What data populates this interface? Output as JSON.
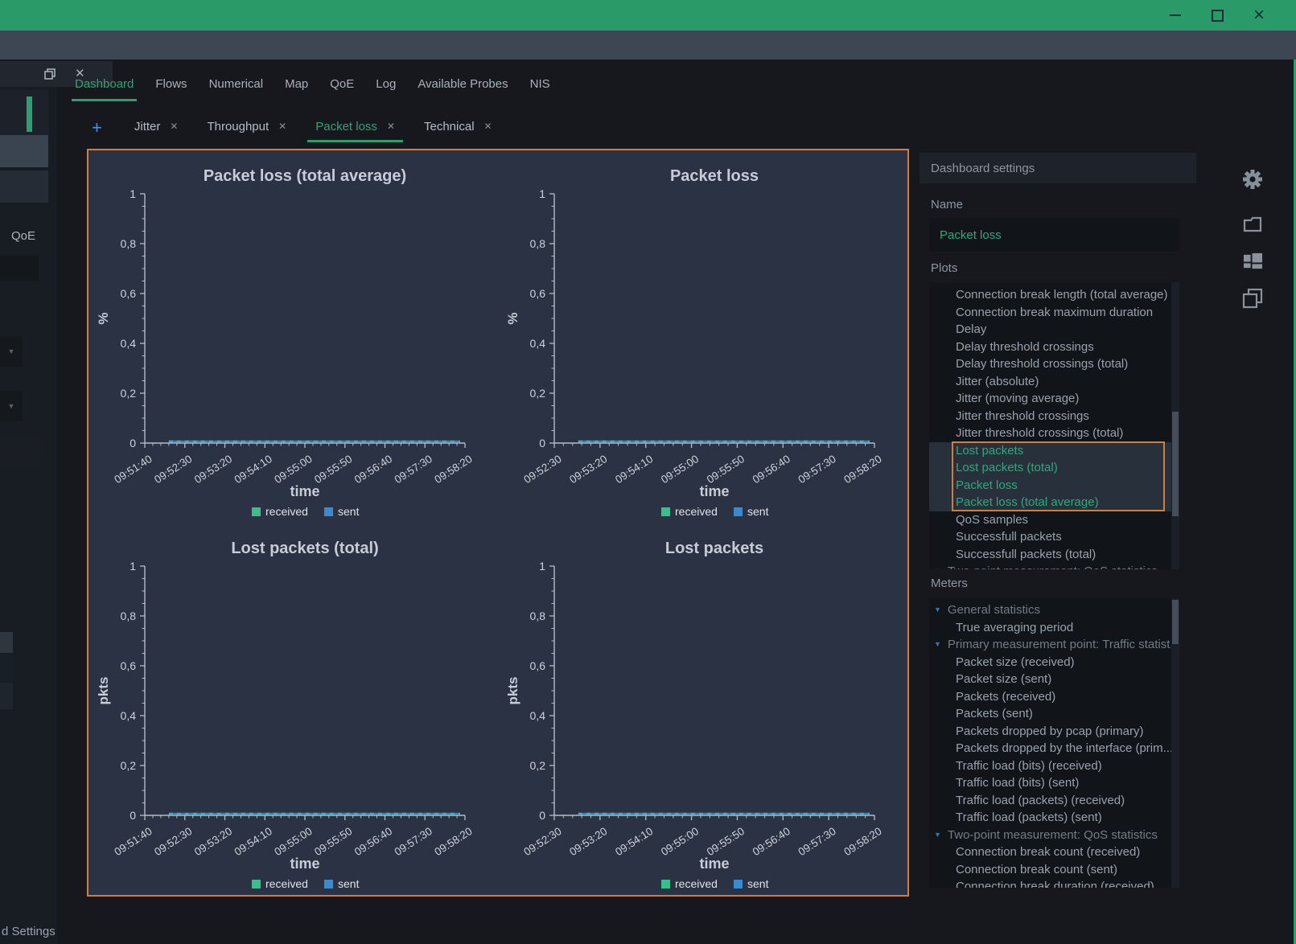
{
  "window": {
    "controls": [
      {
        "name": "minimize"
      },
      {
        "name": "maximize"
      },
      {
        "name": "close"
      }
    ]
  },
  "nav": {
    "items": [
      {
        "label": "Dashboard",
        "active": true
      },
      {
        "label": "Flows",
        "active": false
      },
      {
        "label": "Numerical",
        "active": false
      },
      {
        "label": "Map",
        "active": false
      },
      {
        "label": "QoE",
        "active": false
      },
      {
        "label": "Log",
        "active": false
      },
      {
        "label": "Available Probes",
        "active": false
      },
      {
        "label": "NIS",
        "active": false
      }
    ]
  },
  "subtabs": {
    "add_label": "+",
    "close_glyph": "✕",
    "tabs": [
      {
        "label": "Jitter",
        "active": false
      },
      {
        "label": "Throughput",
        "active": false
      },
      {
        "label": "Packet loss",
        "active": true
      },
      {
        "label": "Technical",
        "active": false
      }
    ]
  },
  "dock": {
    "float_icon": "restore-panel-icon",
    "close_icon": "close-panel-icon",
    "qoe_label": "QoE",
    "bottom_text": "d Settings"
  },
  "settings": {
    "title": "Dashboard settings",
    "name_label": "Name",
    "name_value": "Packet loss",
    "plots_label": "Plots",
    "plots": [
      {
        "label": "Connection break length (total average)"
      },
      {
        "label": "Connection break maximum duration"
      },
      {
        "label": "Delay"
      },
      {
        "label": "Delay threshold crossings"
      },
      {
        "label": "Delay threshold crossings (total)"
      },
      {
        "label": "Jitter (absolute)"
      },
      {
        "label": "Jitter (moving average)"
      },
      {
        "label": "Jitter threshold crossings"
      },
      {
        "label": "Jitter threshold crossings (total)"
      },
      {
        "label": "Lost packets",
        "selected": true
      },
      {
        "label": "Lost packets (total)",
        "selected": true
      },
      {
        "label": "Packet loss",
        "selected": true
      },
      {
        "label": "Packet loss (total average)",
        "selected": true
      },
      {
        "label": "QoS samples"
      },
      {
        "label": "Successfull packets"
      },
      {
        "label": "Successfull packets (total)"
      },
      {
        "label": "Two-point measurement: QoS statistics",
        "group": true
      }
    ],
    "meters_label": "Meters",
    "meters": [
      {
        "label": "General statistics",
        "group": true
      },
      {
        "label": "True averaging period"
      },
      {
        "label": "Primary measurement point: Traffic statist...",
        "group": true
      },
      {
        "label": "Packet size (received)"
      },
      {
        "label": "Packet size (sent)"
      },
      {
        "label": "Packets (received)"
      },
      {
        "label": "Packets (sent)"
      },
      {
        "label": "Packets dropped by pcap (primary)"
      },
      {
        "label": "Packets dropped by the interface (prim..."
      },
      {
        "label": "Traffic load (bits) (received)"
      },
      {
        "label": "Traffic load (bits) (sent)"
      },
      {
        "label": "Traffic load (packets) (received)"
      },
      {
        "label": "Traffic load (packets) (sent)"
      },
      {
        "label": "Two-point measurement: QoS statistics",
        "group": true
      },
      {
        "label": "Connection break count (received)"
      },
      {
        "label": "Connection break count (sent)"
      },
      {
        "label": "Connection break duration (received)"
      }
    ]
  },
  "side_toolbar": {
    "icons": [
      "settings-gear-icon",
      "new-window-icon",
      "dashboard-layout-icon",
      "duplicate-view-icon"
    ]
  },
  "colors": {
    "titlebar_green": "#2a9a68",
    "accent_green": "#2fa87c",
    "selection_orange": "#cf7e3d",
    "received_green": "#3bbd8c",
    "sent_blue": "#3a8bcd",
    "add_button_blue": "#4a90d9",
    "chart_background": "#2a3244"
  },
  "chart_data": [
    {
      "type": "line",
      "title": "Packet loss (total average)",
      "ylabel": "%",
      "xlabel": "time",
      "ylim": [
        0,
        1
      ],
      "yticks": [
        "1",
        "0,8",
        "0,6",
        "0,4",
        "0,2",
        "0"
      ],
      "x": [
        "09:51:40",
        "09:52:30",
        "09:53:20",
        "09:54:10",
        "09:55:00",
        "09:55:50",
        "09:56:40",
        "09:57:30",
        "09:58:20"
      ],
      "series": [
        {
          "name": "received",
          "color": "#3bbd8c",
          "values": [
            0,
            0,
            0,
            0,
            0,
            0,
            0,
            0,
            0
          ]
        },
        {
          "name": "sent",
          "color": "#3a8bcd",
          "values": [
            0,
            0,
            0,
            0,
            0,
            0,
            0,
            0,
            0
          ]
        }
      ],
      "legend_position": "bottom",
      "grid": false
    },
    {
      "type": "line",
      "title": "Packet loss",
      "ylabel": "%",
      "xlabel": "time",
      "ylim": [
        0,
        1
      ],
      "yticks": [
        "1",
        "0,8",
        "0,6",
        "0,4",
        "0,2",
        "0"
      ],
      "x": [
        "09:52:30",
        "09:53:20",
        "09:54:10",
        "09:55:00",
        "09:55:50",
        "09:56:40",
        "09:57:30",
        "09:58:20"
      ],
      "series": [
        {
          "name": "received",
          "color": "#3bbd8c",
          "values": [
            0,
            0,
            0,
            0,
            0,
            0,
            0,
            0
          ]
        },
        {
          "name": "sent",
          "color": "#3a8bcd",
          "values": [
            0,
            0,
            0,
            0,
            0,
            0,
            0,
            0
          ]
        }
      ],
      "legend_position": "bottom",
      "grid": false
    },
    {
      "type": "line",
      "title": "Lost packets (total)",
      "ylabel": "pkts",
      "xlabel": "time",
      "ylim": [
        0,
        1
      ],
      "yticks": [
        "1",
        "0,8",
        "0,6",
        "0,4",
        "0,2",
        "0"
      ],
      "x": [
        "09:51:40",
        "09:52:30",
        "09:53:20",
        "09:54:10",
        "09:55:00",
        "09:55:50",
        "09:56:40",
        "09:57:30",
        "09:58:20"
      ],
      "series": [
        {
          "name": "received",
          "color": "#3bbd8c",
          "values": [
            0,
            0,
            0,
            0,
            0,
            0,
            0,
            0,
            0
          ]
        },
        {
          "name": "sent",
          "color": "#3a8bcd",
          "values": [
            0,
            0,
            0,
            0,
            0,
            0,
            0,
            0,
            0
          ]
        }
      ],
      "legend_position": "bottom",
      "grid": false
    },
    {
      "type": "line",
      "title": "Lost packets",
      "ylabel": "pkts",
      "xlabel": "time",
      "ylim": [
        0,
        1
      ],
      "yticks": [
        "1",
        "0,8",
        "0,6",
        "0,4",
        "0,2",
        "0"
      ],
      "x": [
        "09:52:30",
        "09:53:20",
        "09:54:10",
        "09:55:00",
        "09:55:50",
        "09:56:40",
        "09:57:30",
        "09:58:20"
      ],
      "series": [
        {
          "name": "received",
          "color": "#3bbd8c",
          "values": [
            0,
            0,
            0,
            0,
            0,
            0,
            0,
            0
          ]
        },
        {
          "name": "sent",
          "color": "#3a8bcd",
          "values": [
            0,
            0,
            0,
            0,
            0,
            0,
            0,
            0
          ]
        }
      ],
      "legend_position": "bottom",
      "grid": false
    }
  ]
}
